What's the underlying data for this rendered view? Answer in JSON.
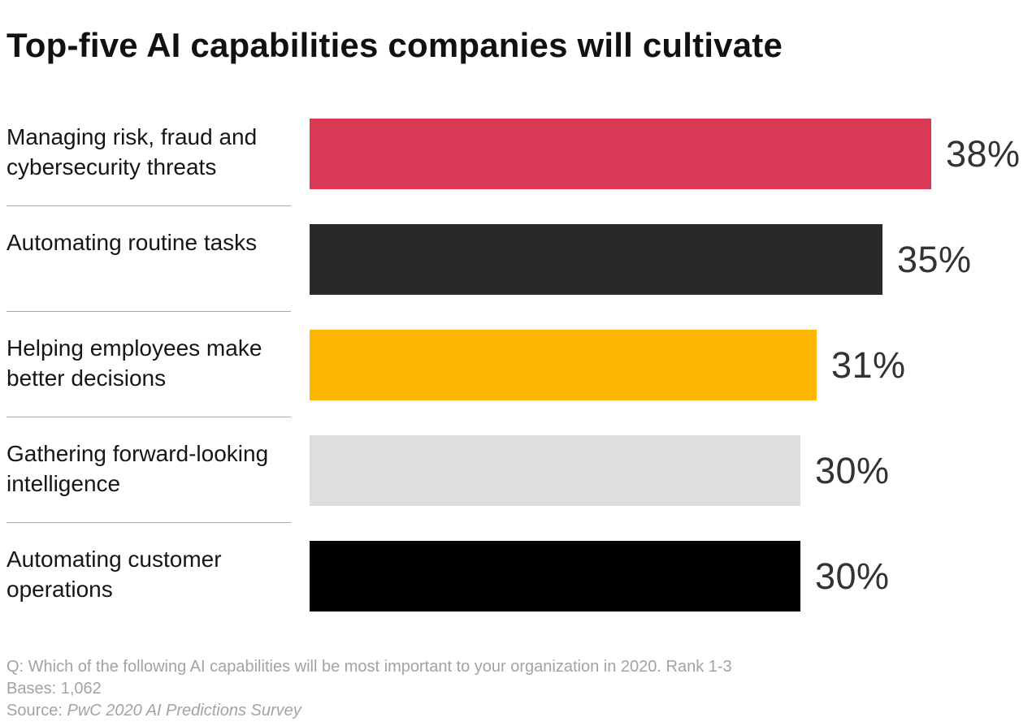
{
  "title": "Top-five AI capabilities companies will cultivate",
  "chart_data": {
    "type": "bar",
    "orientation": "horizontal",
    "title": "Top-five AI capabilities companies will cultivate",
    "categories": [
      "Managing risk, fraud and cybersecurity threats",
      "Automating routine tasks",
      "Helping employees make better decisions",
      "Gathering forward-looking intelligence",
      "Automating customer operations"
    ],
    "values": [
      38,
      35,
      31,
      30,
      30
    ],
    "value_labels": [
      "38%",
      "35%",
      "31%",
      "30%",
      "30%"
    ],
    "colors": [
      "#d93954",
      "#2b2829",
      "#ffb600",
      "#dedede",
      "#000000"
    ],
    "xlabel": "",
    "ylabel": "",
    "xlim": [
      0,
      40
    ],
    "grid": false,
    "legend": false,
    "data_labels_position": "outside-end"
  },
  "footer": {
    "question": "Q: Which of the following AI capabilities will be most important to your organization in 2020. Rank 1-3",
    "bases": "Bases: 1,062",
    "source_prefix": "Source: ",
    "source_name": "PwC 2020 AI Predictions Survey"
  }
}
